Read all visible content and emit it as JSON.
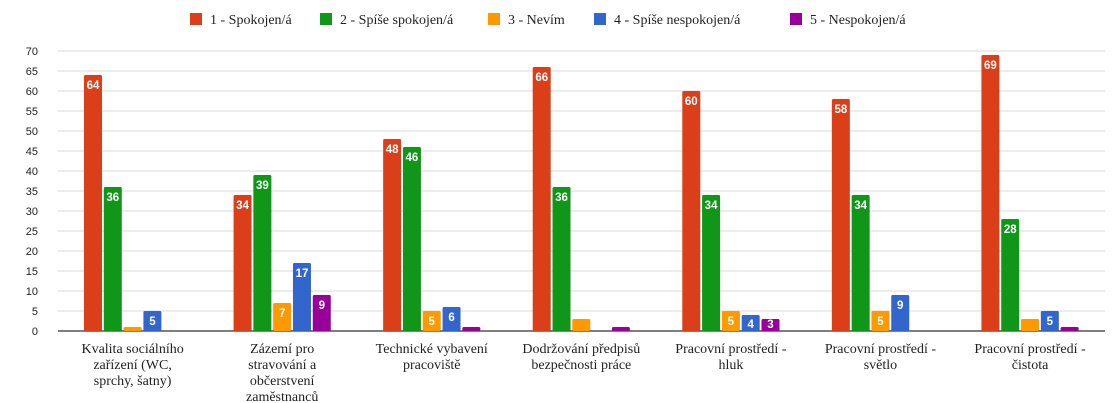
{
  "chart_data": {
    "type": "bar",
    "categories": [
      [
        "Kvalita sociálního",
        "zařízení (WC,",
        "sprchy, šatny)"
      ],
      [
        "Zázemí pro",
        "stravování a",
        "občerstvení",
        "zaměstnanců"
      ],
      [
        "Technické vybavení",
        "pracoviště"
      ],
      [
        "Dodržování předpisů",
        "bezpečnosti práce"
      ],
      [
        "Pracovní prostředí -",
        "hluk"
      ],
      [
        "Pracovní prostředí -",
        "světlo"
      ],
      [
        "Pracovní prostředí -",
        "čistota"
      ]
    ],
    "series": [
      {
        "name": "1 - Spokojen/á",
        "color": "#db3f1a",
        "values": [
          64,
          34,
          48,
          66,
          60,
          58,
          69
        ]
      },
      {
        "name": "2 - Spíše spokojen/á",
        "color": "#109618",
        "values": [
          36,
          39,
          46,
          36,
          34,
          34,
          28
        ]
      },
      {
        "name": "3 - Nevím",
        "color": "#ff9900",
        "values": [
          1,
          7,
          5,
          3,
          5,
          5,
          3
        ]
      },
      {
        "name": "4 - Spíše nespokojen/á",
        "color": "#3366cc",
        "values": [
          5,
          17,
          6,
          0,
          4,
          9,
          5
        ]
      },
      {
        "name": "5 - Nespokojen/á",
        "color": "#990099",
        "values": [
          0,
          9,
          1,
          1,
          3,
          0,
          1
        ]
      }
    ],
    "value_labels": [
      [
        "64",
        "36",
        "",
        "5",
        ""
      ],
      [
        "34",
        "39",
        "7",
        "17",
        "9"
      ],
      [
        "48",
        "46",
        "5",
        "6",
        ""
      ],
      [
        "66",
        "36",
        "",
        "",
        ""
      ],
      [
        "60",
        "34",
        "5",
        "4",
        "3"
      ],
      [
        "58",
        "34",
        "5",
        "9",
        ""
      ],
      [
        "69",
        "28",
        "",
        "5",
        ""
      ]
    ],
    "y_ticks": [
      "0",
      "5",
      "10",
      "15",
      "20",
      "25",
      "30",
      "35",
      "40",
      "45",
      "50",
      "55",
      "60",
      "65",
      "70"
    ],
    "ylim": [
      0,
      70
    ],
    "grid": true,
    "legend_position": "top",
    "title": "",
    "xlabel": "",
    "ylabel": ""
  }
}
